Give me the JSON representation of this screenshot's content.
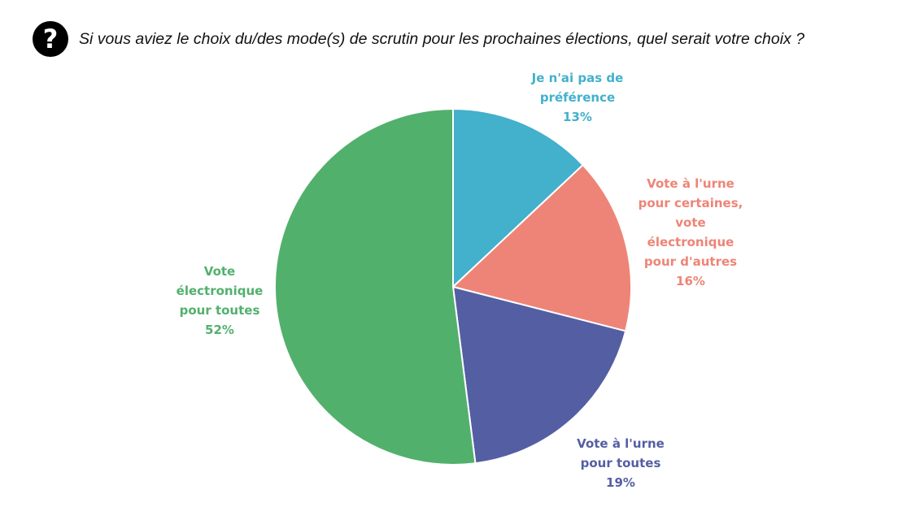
{
  "header": {
    "icon": "question-circle-icon",
    "title": "Si vous aviez le choix du/des mode(s) de scrutin pour les prochaines élections, quel serait votre choix ?"
  },
  "chart_data": {
    "type": "pie",
    "title": "Si vous aviez le choix du/des mode(s) de scrutin pour les prochaines élections, quel serait votre choix ?",
    "start": "12 o'clock, clockwise",
    "slices": [
      {
        "label_lines": [
          "Je n'ai pas de",
          "préférence"
        ],
        "value": 13,
        "value_label": "13%",
        "color": "#43B0CC"
      },
      {
        "label_lines": [
          "Vote à l'urne",
          "pour certaines,",
          "vote",
          "électronique",
          "pour d'autres"
        ],
        "value": 16,
        "value_label": "16%",
        "color": "#EE8477"
      },
      {
        "label_lines": [
          "Vote à l'urne",
          "pour toutes"
        ],
        "value": 19,
        "value_label": "19%",
        "color": "#545EA3"
      },
      {
        "label_lines": [
          "Vote",
          "électronique",
          "pour toutes"
        ],
        "value": 52,
        "value_label": "52%",
        "color": "#52B06D"
      }
    ]
  }
}
